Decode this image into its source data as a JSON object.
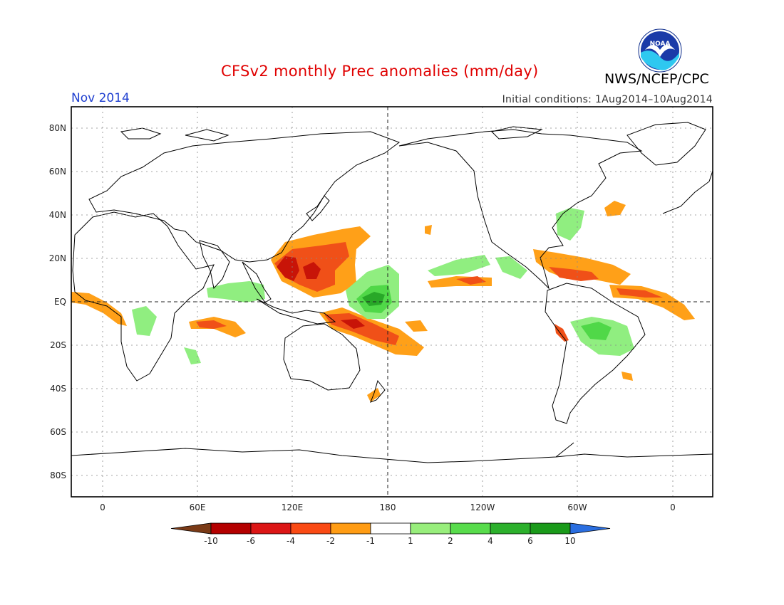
{
  "header": {
    "title": "CFSv2 monthly Prec anomalies (mm/day)",
    "organization": "NWS/NCEP/CPC",
    "month": "Nov 2014",
    "initial_conditions": "Initial conditions: 1Aug2014–10Aug2014",
    "logo_text": "NOAA"
  },
  "map": {
    "lat_labels": [
      "80N",
      "60N",
      "40N",
      "20N",
      "EQ",
      "20S",
      "40S",
      "60S",
      "80S"
    ],
    "lon_labels": [
      "0",
      "60E",
      "120E",
      "180",
      "120W",
      "60W",
      "0"
    ],
    "legend": {
      "labels": [
        "-10",
        "-6",
        "-4",
        "-2",
        "-1",
        "1",
        "2",
        "4",
        "6",
        "10"
      ],
      "colors": [
        "#7a3a16",
        "#b40000",
        "#dc1616",
        "#fa4a14",
        "#ff9c14",
        "#ffffff",
        "#98ee7c",
        "#58dc4c",
        "#2cb02c",
        "#1a9a1a",
        "#2a6ee0"
      ]
    },
    "anomaly_colors": {
      "dark_red": "#c81408",
      "red": "#f05018",
      "orange": "#ffa018",
      "light_green": "#90ee80",
      "green": "#50d848",
      "dark_green": "#28a828"
    }
  }
}
